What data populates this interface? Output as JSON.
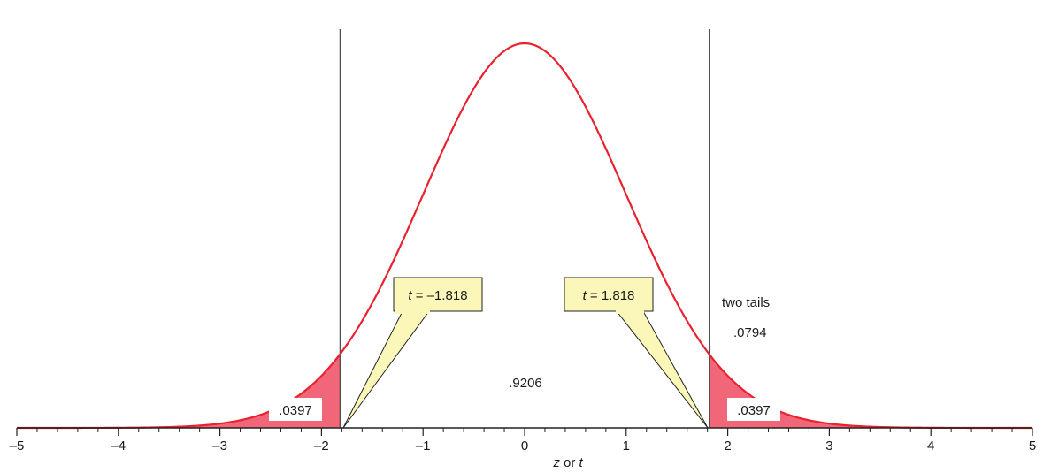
{
  "chart_data": {
    "type": "area",
    "distribution": "standard normal density",
    "x_range": [
      -5,
      5
    ],
    "y_range": [
      0,
      0.4
    ],
    "xlabel_var1": "z",
    "xlabel_mid": " or ",
    "xlabel_var2": "t",
    "xticks": [
      {
        "value": -5,
        "label": "–5"
      },
      {
        "value": -4,
        "label": "–4"
      },
      {
        "value": -3,
        "label": "–3"
      },
      {
        "value": -2,
        "label": "–2"
      },
      {
        "value": -1,
        "label": "–1"
      },
      {
        "value": 0,
        "label": "0"
      },
      {
        "value": 1,
        "label": "1"
      },
      {
        "value": 2,
        "label": "2"
      },
      {
        "value": 3,
        "label": "3"
      },
      {
        "value": 4,
        "label": "4"
      },
      {
        "value": 5,
        "label": "5"
      }
    ],
    "minor_tick_step": 0.2,
    "critical_values": [
      -1.818,
      1.818
    ],
    "shaded_tails": true,
    "colors": {
      "curve": "#e8222e",
      "tail_fill": "#f2667a",
      "callout_fill": "#fbf7b8",
      "axis": "#222222"
    },
    "annotations": {
      "left_callout_var": "t",
      "left_callout_value": " = –1.818",
      "right_callout_var": "t",
      "right_callout_value": " = 1.818",
      "left_tail": ".0397",
      "right_tail": ".0397",
      "center": ".9206",
      "two_tails_label": "two tails",
      "two_tails_value": ".0794"
    }
  }
}
